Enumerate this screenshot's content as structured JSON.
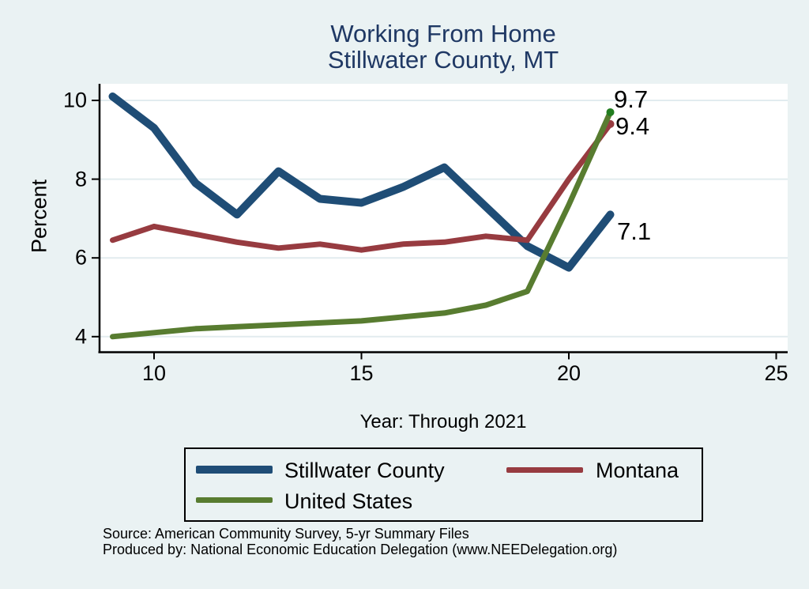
{
  "title": {
    "line1": "Working From Home",
    "line2": "Stillwater County, MT"
  },
  "axes": {
    "y_label": "Percent",
    "x_label": "Year: Through 2021",
    "y_ticks": [
      4,
      6,
      8,
      10
    ],
    "x_ticks": [
      10,
      15,
      20,
      25
    ]
  },
  "chart_data": {
    "type": "line",
    "title": "Working From Home — Stillwater County, MT",
    "xlabel": "Year: Through 2021",
    "ylabel": "Percent",
    "x": [
      9,
      10,
      11,
      12,
      13,
      14,
      15,
      16,
      17,
      18,
      19,
      20,
      21
    ],
    "series": [
      {
        "name": "Stillwater County",
        "color": "#1f4d76",
        "line_width": 10,
        "values": [
          10.1,
          9.3,
          7.9,
          7.1,
          8.2,
          7.5,
          7.4,
          7.8,
          8.3,
          7.3,
          6.3,
          5.75,
          7.1
        ],
        "end_marker": false,
        "end_label": "7.1"
      },
      {
        "name": "Montana",
        "color": "#973b40",
        "line_width": 7,
        "values": [
          6.45,
          6.8,
          6.6,
          6.4,
          6.25,
          6.35,
          6.2,
          6.35,
          6.4,
          6.55,
          6.45,
          8.0,
          9.4
        ],
        "end_marker": true,
        "end_marker_color": "#973b40",
        "end_label": "9.4"
      },
      {
        "name": "United States",
        "color": "#587c30",
        "line_width": 7,
        "values": [
          4.0,
          4.1,
          4.2,
          4.25,
          4.3,
          4.35,
          4.4,
          4.5,
          4.6,
          4.8,
          5.15,
          7.35,
          9.7
        ],
        "end_marker": true,
        "end_marker_color": "#227d20",
        "end_label": "9.7"
      }
    ],
    "xlim": [
      8.66,
      25.3
    ],
    "ylim": [
      3.65,
      10.42
    ],
    "grid": "horizontal",
    "legend_position": "bottom"
  },
  "end_labels": {
    "united_states": "9.7",
    "montana": "9.4",
    "stillwater_county": "7.1"
  },
  "legend": {
    "items": [
      {
        "label": "Stillwater County",
        "color": "#1f4d76"
      },
      {
        "label": "Montana",
        "color": "#973b40"
      },
      {
        "label": "United States",
        "color": "#587c30"
      }
    ]
  },
  "footer": {
    "source": "Source: American Community Survey, 5-yr Summary Files",
    "produced_by": "Produced by: National Economic Education Delegation (www.NEEDelegation.org)"
  },
  "colors": {
    "background": "#eaf2f3",
    "plot_background": "#ffffff",
    "gridline": "#e2ecef",
    "axis": "#000000",
    "title": "#1f3864"
  }
}
